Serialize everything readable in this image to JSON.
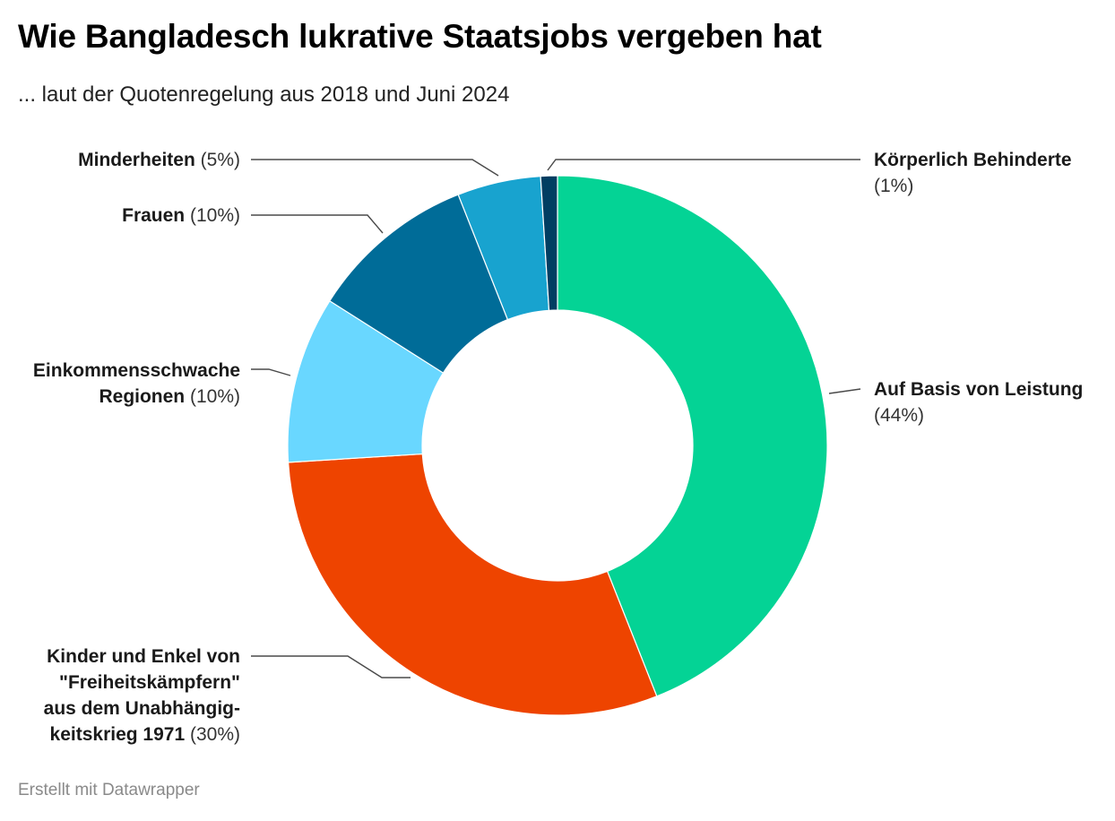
{
  "title": "Wie Bangladesch lukrative Staatsjobs vergeben hat",
  "subtitle": "... laut der Quotenregelung aus 2018 und Juni 2024",
  "footer": "Erstellt mit Datawrapper",
  "chart_data": {
    "type": "pie",
    "variant": "donut",
    "slices": [
      {
        "label": "Auf Basis von Leistung",
        "label_lines": [
          "Auf Basis von Leistung"
        ],
        "value": 44,
        "pct_text": "(44%)",
        "color": "#04d395"
      },
      {
        "label": "Kinder und Enkel von \"Freiheitskämpfern\" aus dem Unabhängigkeitskrieg 1971",
        "label_lines": [
          "Kinder und Enkel von",
          "\"Freiheitskämpfern\"",
          "aus dem Unabhängig-",
          "keitskrieg 1971"
        ],
        "value": 30,
        "pct_text": "(30%)",
        "color": "#ee4400"
      },
      {
        "label": "Einkommensschwache Regionen",
        "label_lines": [
          "Einkommensschwache",
          "Regionen"
        ],
        "value": 10,
        "pct_text": "(10%)",
        "color": "#69d7ff"
      },
      {
        "label": "Frauen",
        "label_lines": [
          "Frauen"
        ],
        "value": 10,
        "pct_text": "(10%)",
        "color": "#006c98"
      },
      {
        "label": "Minderheiten",
        "label_lines": [
          "Minderheiten"
        ],
        "value": 5,
        "pct_text": "(5%)",
        "color": "#18a3cf"
      },
      {
        "label": "Körperlich Behinderte",
        "label_lines": [
          "Körperlich Behinderte"
        ],
        "value": 1,
        "pct_text": "(1%)",
        "color": "#003e62"
      }
    ]
  }
}
